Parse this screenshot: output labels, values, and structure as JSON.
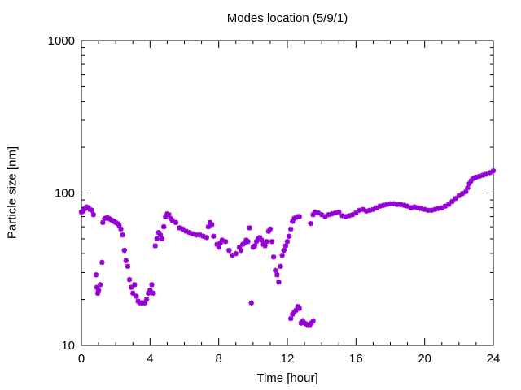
{
  "chart_data": {
    "type": "scatter",
    "title": "Modes location (5/9/1)",
    "xlabel": "Time [hour]",
    "ylabel": "Particle size [nm]",
    "xlim": [
      0,
      24
    ],
    "ylim": [
      10,
      1000
    ],
    "yscale": "log",
    "grid": false,
    "xticks": [
      "0",
      "4",
      "8",
      "12",
      "16",
      "20",
      "24"
    ],
    "yticks": [
      "10",
      "100",
      "1000"
    ],
    "marker_color": "#9400d3",
    "series": [
      {
        "points": [
          [
            0.0,
            75
          ],
          [
            0.1,
            76
          ],
          [
            0.2,
            79
          ],
          [
            0.3,
            81
          ],
          [
            0.4,
            80
          ],
          [
            0.5,
            78
          ],
          [
            0.6,
            77
          ],
          [
            0.7,
            72
          ],
          [
            0.85,
            29
          ],
          [
            0.9,
            24
          ],
          [
            0.95,
            22
          ],
          [
            1.0,
            23
          ],
          [
            1.1,
            25
          ],
          [
            1.2,
            35
          ],
          [
            1.25,
            64
          ],
          [
            1.35,
            68
          ],
          [
            1.5,
            69
          ],
          [
            1.6,
            68
          ],
          [
            1.7,
            67
          ],
          [
            1.8,
            66
          ],
          [
            1.9,
            65
          ],
          [
            2.0,
            64
          ],
          [
            2.1,
            63
          ],
          [
            2.2,
            61
          ],
          [
            2.3,
            58
          ],
          [
            2.4,
            53
          ],
          [
            2.5,
            42
          ],
          [
            2.6,
            36
          ],
          [
            2.7,
            33
          ],
          [
            2.8,
            27
          ],
          [
            2.9,
            24
          ],
          [
            3.0,
            22
          ],
          [
            3.1,
            25
          ],
          [
            3.2,
            21
          ],
          [
            3.3,
            19.5
          ],
          [
            3.4,
            19
          ],
          [
            3.5,
            19
          ],
          [
            3.6,
            19
          ],
          [
            3.7,
            19
          ],
          [
            3.8,
            20
          ],
          [
            3.9,
            22
          ],
          [
            4.0,
            23
          ],
          [
            4.1,
            25
          ],
          [
            4.2,
            22
          ],
          [
            4.3,
            45
          ],
          [
            4.4,
            50
          ],
          [
            4.5,
            55
          ],
          [
            4.6,
            53
          ],
          [
            4.7,
            50
          ],
          [
            4.8,
            60
          ],
          [
            4.9,
            70
          ],
          [
            5.0,
            73
          ],
          [
            5.1,
            72
          ],
          [
            5.2,
            68
          ],
          [
            5.3,
            66
          ],
          [
            5.5,
            64
          ],
          [
            5.7,
            59
          ],
          [
            5.9,
            58
          ],
          [
            6.1,
            56
          ],
          [
            6.3,
            55
          ],
          [
            6.5,
            54
          ],
          [
            6.7,
            53
          ],
          [
            6.9,
            53
          ],
          [
            7.1,
            52
          ],
          [
            7.3,
            51
          ],
          [
            7.4,
            60
          ],
          [
            7.5,
            64
          ],
          [
            7.6,
            62
          ],
          [
            7.7,
            52
          ],
          [
            7.9,
            46
          ],
          [
            8.0,
            44
          ],
          [
            8.1,
            47
          ],
          [
            8.2,
            49
          ],
          [
            8.4,
            48
          ],
          [
            8.6,
            42
          ],
          [
            8.8,
            39
          ],
          [
            9.0,
            40
          ],
          [
            9.2,
            44
          ],
          [
            9.3,
            42
          ],
          [
            9.4,
            46
          ],
          [
            9.5,
            47
          ],
          [
            9.6,
            49
          ],
          [
            9.7,
            48
          ],
          [
            9.8,
            59
          ],
          [
            9.9,
            19
          ],
          [
            10.0,
            44
          ],
          [
            10.1,
            45
          ],
          [
            10.2,
            48
          ],
          [
            10.3,
            50
          ],
          [
            10.4,
            51
          ],
          [
            10.5,
            49
          ],
          [
            10.6,
            46
          ],
          [
            10.7,
            45
          ],
          [
            10.8,
            48
          ],
          [
            10.9,
            56
          ],
          [
            11.0,
            58
          ],
          [
            11.1,
            48
          ],
          [
            11.2,
            38
          ],
          [
            11.3,
            31
          ],
          [
            11.4,
            29
          ],
          [
            11.5,
            26
          ],
          [
            11.6,
            33
          ],
          [
            11.7,
            39
          ],
          [
            11.8,
            42
          ],
          [
            11.9,
            45
          ],
          [
            12.0,
            48
          ],
          [
            12.1,
            52
          ],
          [
            12.2,
            58
          ],
          [
            12.3,
            65
          ],
          [
            12.4,
            68
          ],
          [
            12.5,
            69
          ],
          [
            12.6,
            70
          ],
          [
            12.7,
            70
          ],
          [
            12.2,
            15
          ],
          [
            12.3,
            16
          ],
          [
            12.4,
            16.5
          ],
          [
            12.5,
            17
          ],
          [
            12.6,
            18
          ],
          [
            12.7,
            17.5
          ],
          [
            12.8,
            14
          ],
          [
            12.9,
            14.5
          ],
          [
            13.0,
            14
          ],
          [
            13.1,
            13.8
          ],
          [
            13.2,
            13.5
          ],
          [
            13.3,
            13.5
          ],
          [
            13.4,
            14
          ],
          [
            13.5,
            14.5
          ],
          [
            13.35,
            63
          ],
          [
            13.5,
            72
          ],
          [
            13.6,
            75
          ],
          [
            13.8,
            74
          ],
          [
            14.0,
            72
          ],
          [
            14.2,
            70
          ],
          [
            14.4,
            72
          ],
          [
            14.6,
            73
          ],
          [
            14.8,
            74
          ],
          [
            15.0,
            75
          ],
          [
            15.2,
            71
          ],
          [
            15.4,
            70
          ],
          [
            15.6,
            71
          ],
          [
            15.8,
            72
          ],
          [
            16.0,
            74
          ],
          [
            16.2,
            77
          ],
          [
            16.4,
            78
          ],
          [
            16.6,
            76
          ],
          [
            16.8,
            77
          ],
          [
            17.0,
            78
          ],
          [
            17.2,
            80
          ],
          [
            17.4,
            82
          ],
          [
            17.6,
            83
          ],
          [
            17.8,
            84
          ],
          [
            18.0,
            85
          ],
          [
            18.2,
            85
          ],
          [
            18.4,
            84
          ],
          [
            18.6,
            84
          ],
          [
            18.8,
            83
          ],
          [
            19.0,
            82
          ],
          [
            19.2,
            80
          ],
          [
            19.4,
            81
          ],
          [
            19.6,
            80
          ],
          [
            19.8,
            79
          ],
          [
            20.0,
            78
          ],
          [
            20.2,
            77
          ],
          [
            20.4,
            77
          ],
          [
            20.6,
            78
          ],
          [
            20.8,
            79
          ],
          [
            21.0,
            80
          ],
          [
            21.2,
            82
          ],
          [
            21.4,
            84
          ],
          [
            21.6,
            88
          ],
          [
            21.8,
            92
          ],
          [
            22.0,
            96
          ],
          [
            22.2,
            99
          ],
          [
            22.4,
            102
          ],
          [
            22.5,
            108
          ],
          [
            22.6,
            115
          ],
          [
            22.7,
            120
          ],
          [
            22.8,
            124
          ],
          [
            22.9,
            126
          ],
          [
            23.0,
            127
          ],
          [
            23.2,
            129
          ],
          [
            23.4,
            131
          ],
          [
            23.6,
            133
          ],
          [
            23.8,
            136
          ],
          [
            24.0,
            140
          ]
        ]
      }
    ]
  }
}
